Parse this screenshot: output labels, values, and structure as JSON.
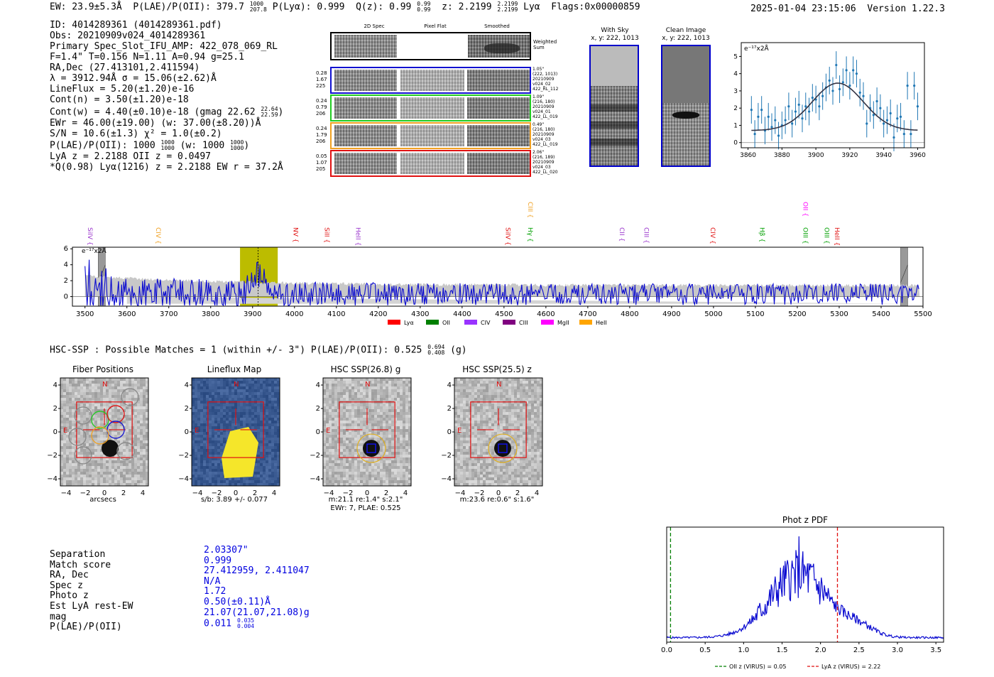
{
  "header": {
    "ew": "EW: 23.9±5.3Å",
    "plae_label": "P(LAE)/P(OII): 379.7",
    "plae_hi": "1000",
    "plae_lo": "207.8",
    "plya": "P(Lyα): 0.999",
    "qz": "Q(z): 0.99",
    "qz_hi": "0.99",
    "qz_lo": "0.99",
    "z": "z: 2.2199",
    "z_hi": "2.2199",
    "z_lo": "2.2199",
    "z_line": "Lyα",
    "flags": "Flags:0x00000859",
    "datetime": "2025-01-04 23:15:06",
    "version": "Version 1.22.3"
  },
  "info": {
    "lines": [
      "ID: 4014289361 (4014289361.pdf)",
      "Obs: 20210909v024_4014289361",
      "Primary Spec_Slot_IFU_AMP: 422_078_069_RL",
      "F=1.4\"  T=0.156  N=1.11  A=0.94  g=25.1",
      "RA,Dec (27.413101,2.411594)",
      "λ = 3912.94Å  σ = 15.06(±2.62)Å",
      "LineFlux = 5.20(±1.20)e-16",
      "Cont(n) = 3.50(±1.20)e-18"
    ],
    "contw": "Cont(w) = 4.40(±0.10)e-18 (gmag 22.62",
    "contw_hi": "22.64",
    "contw_lo": "22.59",
    "contw_end": ")",
    "lines2": [
      "EWr = 46.00(±19.00) (w: 37.00(±8.20))Å",
      "S/N = 10.6(±1.3)  χ² = 1.0(±0.2)"
    ],
    "plae": "P(LAE)/P(OII): 1000",
    "plae_hi": "1000",
    "plae_lo": "1000",
    "plae_w": "(w: 1000",
    "plae_w_hi": "1000",
    "plae_w_lo": "1000",
    "plae_end": ")",
    "lines3": [
      "LyA z = 2.2188  OII z = 0.0497",
      "*Q(0.98) Lyα(1216) z = 2.2188  EW r = 37.2Å"
    ]
  },
  "cutouts": {
    "col_labels": [
      "2D Spec",
      "Pixel Flat",
      "Smoothed"
    ],
    "weighted_label": "Weighted Sum",
    "rows": [
      {
        "left": [
          "0.28",
          "1.67",
          "225"
        ],
        "right": [
          "1.05\"",
          "(222, 1013)",
          "20210909",
          "v024_02",
          "422_RL_112"
        ],
        "color": "#1010d0"
      },
      {
        "left": [
          "0.24",
          "0.79",
          "206"
        ],
        "right": [
          "1.09\"",
          "(216, 180)",
          "20210909",
          "v024_01",
          "422_LL_019"
        ],
        "color": "#22cc22"
      },
      {
        "left": [
          "0.24",
          "1.79",
          "206"
        ],
        "right": [
          "0.49\"",
          "(216, 180)",
          "20210909",
          "v024_03",
          "422_LL_019"
        ],
        "color": "#f0a020"
      },
      {
        "left": [
          "0.05",
          "1.07",
          "205"
        ],
        "right": [
          "2.06\"",
          "(216, 189)",
          "20210909",
          "v024_03",
          "422_LL_020"
        ],
        "color": "#e01010"
      }
    ],
    "with_sky": "With Sky",
    "with_sky_xy": "x, y: 222, 1013",
    "clean": "Clean Image",
    "clean_xy": "x, y: 222, 1013"
  },
  "fit_chart": {
    "type": "scatter",
    "ylabel": "e⁻¹⁷x2Å",
    "xlim": [
      3856,
      3964
    ],
    "ylim": [
      -0.3,
      5.8
    ],
    "xticks": [
      3860,
      3880,
      3900,
      3920,
      3940,
      3960
    ],
    "yticks": [
      0,
      1,
      2,
      3,
      4,
      5
    ],
    "gauss": {
      "amp": 2.75,
      "mu": 3912.94,
      "sigma": 15.06,
      "base": 0.7
    },
    "x": [
      3862,
      3864,
      3866,
      3868,
      3870,
      3872,
      3874,
      3876,
      3878,
      3880,
      3882,
      3884,
      3886,
      3888,
      3890,
      3892,
      3894,
      3896,
      3898,
      3900,
      3902,
      3904,
      3906,
      3908,
      3910,
      3912,
      3914,
      3916,
      3918,
      3920,
      3922,
      3924,
      3926,
      3928,
      3930,
      3932,
      3934,
      3936,
      3938,
      3940,
      3942,
      3944,
      3946,
      3948,
      3950,
      3952,
      3954,
      3956,
      3958,
      3960
    ],
    "y": [
      1.9,
      0.5,
      1.5,
      1.9,
      0.7,
      1.5,
      0.9,
      1.3,
      0.4,
      1.0,
      1.3,
      2.1,
      1.1,
      1.8,
      2.2,
      1.4,
      2.1,
      1.8,
      2.6,
      2.5,
      2.1,
      2.7,
      3.2,
      3.6,
      3.0,
      4.5,
      3.1,
      3.5,
      4.2,
      3.3,
      4.2,
      4.0,
      2.9,
      2.7,
      1.1,
      2.0,
      1.6,
      2.4,
      2.0,
      1.1,
      1.3,
      1.7,
      0.3,
      1.4,
      1.5,
      0.5,
      3.3,
      0.5,
      3.3,
      2.1
    ],
    "err": 0.8
  },
  "spectrum": {
    "type": "line",
    "ylabel": "e⁻¹⁷x2Å",
    "xlim": [
      3470,
      5500
    ],
    "ylim": [
      -1.2,
      6.2
    ],
    "xticks": [
      3500,
      3600,
      3700,
      3800,
      3900,
      4000,
      4100,
      4200,
      4300,
      4400,
      4500,
      4600,
      4700,
      4800,
      4900,
      5000,
      5100,
      5200,
      5300,
      5400,
      5500
    ],
    "yticks": [
      0,
      2,
      4,
      6
    ],
    "highlight": [
      3870,
      3960
    ],
    "center": 3912.94,
    "masks": [
      3540,
      5455
    ],
    "lines": [
      {
        "label": "SiIV",
        "x": 3502,
        "color": "#9933cc",
        "row": 0
      },
      {
        "label": "CIV",
        "x": 3665,
        "color": "#f0a020",
        "row": 0
      },
      {
        "label": "NV",
        "x": 3993,
        "color": "#e01010",
        "row": 0
      },
      {
        "label": "SiII",
        "x": 4067,
        "color": "#e01010",
        "row": 0
      },
      {
        "label": "HeII",
        "x": 4142,
        "color": "#9933cc",
        "row": 0
      },
      {
        "label": "SiIV",
        "x": 4499,
        "color": "#e01010",
        "row": 0
      },
      {
        "label": "CIII",
        "x": 4553,
        "color": "#f0a020",
        "row": 1
      },
      {
        "label": "Hγ",
        "x": 4553,
        "color": "#00a000",
        "row": 0
      },
      {
        "label": "CII",
        "x": 4771,
        "color": "#9933cc",
        "row": 0
      },
      {
        "label": "CIII",
        "x": 4830,
        "color": "#9933cc",
        "row": 0
      },
      {
        "label": "CIV",
        "x": 4988,
        "color": "#e01010",
        "row": 0
      },
      {
        "label": "Hβ",
        "x": 5106,
        "color": "#00a000",
        "row": 0
      },
      {
        "label": "OII",
        "x": 5209,
        "color": "#ff00ff",
        "row": 1
      },
      {
        "label": "OIII",
        "x": 5209,
        "color": "#00a000",
        "row": 0
      },
      {
        "label": "OIII",
        "x": 5260,
        "color": "#00a000",
        "row": 0
      },
      {
        "label": "HeII",
        "x": 5285,
        "color": "#e01010",
        "row": 0
      }
    ],
    "legend": [
      {
        "label": "Lyα",
        "color": "#ff0000"
      },
      {
        "label": "OII",
        "color": "#008000"
      },
      {
        "label": "CIV",
        "color": "#9933ff"
      },
      {
        "label": "CIII",
        "color": "#800080"
      },
      {
        "label": "MgII",
        "color": "#ff00ff"
      },
      {
        "label": "HeII",
        "color": "#ffa500"
      }
    ]
  },
  "hsc": {
    "summary": "HSC-SSP : Possible Matches = 1 (within +/- 3\")  P(LAE)/P(OII): 0.525",
    "summary_hi": "0.694",
    "summary_lo": "0.408",
    "summary_end": "(g)",
    "panels": [
      {
        "title": "Fiber Positions",
        "caption": [
          "arcsecs"
        ]
      },
      {
        "title": "Lineflux Map",
        "caption": [
          "s/b: 3.89 +/- 0.077"
        ]
      },
      {
        "title": "HSC SSP(26.8) g",
        "caption": [
          "m:21.1  re:1.4\"  s:2.1\"",
          "EWr: 7, PLAE: 0.525"
        ]
      },
      {
        "title": "HSC SSP(25.5) z",
        "caption": [
          "m:23.6  re:0.6\"  s:1.6\""
        ]
      }
    ],
    "compass_n": "N",
    "compass_e": "E",
    "ticks": [
      "4",
      "2",
      "0",
      "−2",
      "−4"
    ],
    "xticks": [
      "−4",
      "−2",
      "0",
      "2",
      "4"
    ]
  },
  "match": {
    "labels": [
      "Separation",
      "Match score",
      "RA, Dec",
      "Spec z",
      "Photo z",
      "Est LyA rest-EW",
      "mag",
      "P(LAE)/P(OII)"
    ],
    "values": [
      "2.03307\"",
      "0.999",
      "27.412959, 2.411047",
      "N/A",
      "1.72",
      "0.50(±0.11)Å",
      "21.07(21.07,21.08)g",
      "0.011"
    ],
    "plae_hi": "0.035",
    "plae_lo": "0.004"
  },
  "pdf_chart": {
    "type": "line",
    "title": "Phot z PDF",
    "xlim": [
      0,
      3.6
    ],
    "xticks": [
      "0.0",
      "0.5",
      "1.0",
      "1.5",
      "2.0",
      "2.5",
      "3.0",
      "3.5"
    ],
    "oii_z": 0.05,
    "lya_z": 2.22,
    "legend_oii": "OII z (VIRUS) = 0.05",
    "legend_lya": "LyA z (VIRUS) = 2.22",
    "peak_z": 1.72
  }
}
